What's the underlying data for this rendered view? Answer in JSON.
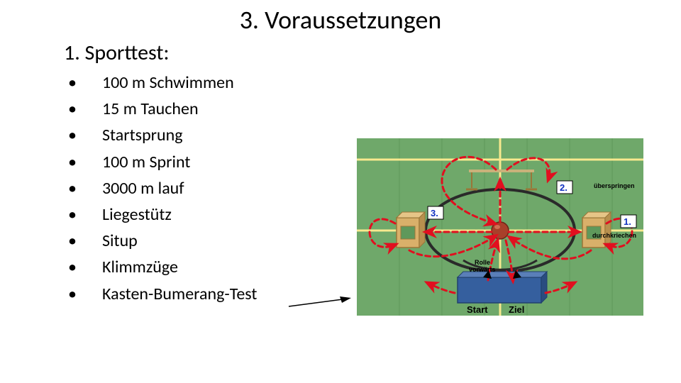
{
  "title": "3. Voraussetzungen",
  "subtitle": "1. Sporttest:",
  "bullets": [
    "100 m Schwimmen",
    "15 m Tauchen",
    "Startsprung",
    "100 m Sprint",
    "3000 m lauf",
    "Liegestütz",
    "Situp",
    "Klimmzüge",
    "Kasten-Bumerang-Test"
  ],
  "diagram": {
    "floor_color": "#6fa86a",
    "floor_lines": "#f7e98e",
    "circle_line": "#2a2a2a",
    "mat_color": "#355f9e",
    "box_fill": "#d9b06a",
    "box_stroke": "#9a7638",
    "ball_color": "#a8402a",
    "hurdle_color": "#c9b27a",
    "arrow_color": "#e10f1f",
    "num_box_fill": "#ffffff",
    "num_box_stroke": "#000000",
    "num_text_color": "#1030c0",
    "label_color": "#000000",
    "labels": {
      "one": "1.",
      "two": "2.",
      "three": "3.",
      "start": "Start",
      "ziel": "Ziel",
      "roll": "Rolle\nvorwärts",
      "over": "überspringen",
      "crawl": "durchkriechen"
    }
  },
  "colors": {
    "text": "#000000",
    "bg": "#ffffff",
    "arrow_to_diagram": "#000000"
  }
}
